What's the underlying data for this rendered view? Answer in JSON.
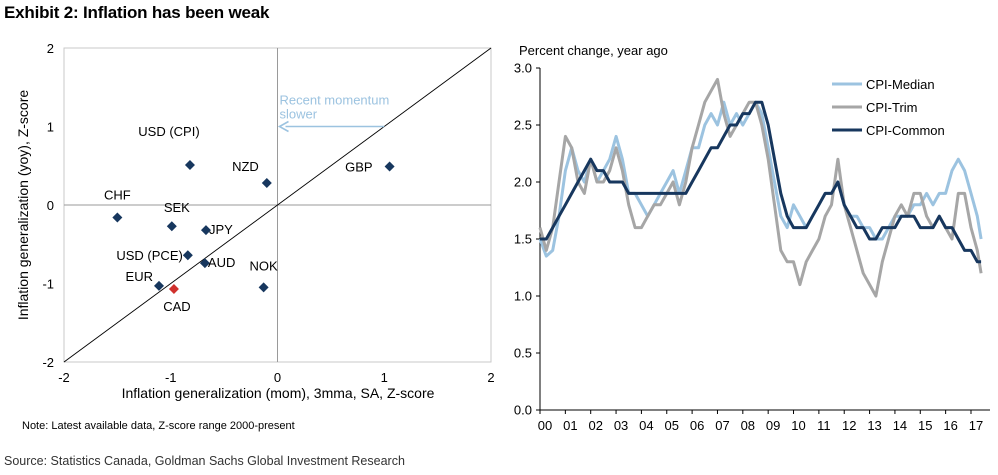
{
  "title": "Exhibit 2: Inflation has been weak",
  "source": "Source: Statistics Canada, Goldman Sachs Global Investment Research",
  "chart_data": [
    {
      "type": "scatter",
      "xlabel": "Inflation generalization (mom), 3mma, SA, Z-score",
      "ylabel": "Inflation generalization (yoy), Z-score",
      "xlim": [
        -2,
        2
      ],
      "ylim": [
        -2,
        2
      ],
      "xticks": [
        "-2",
        "-1",
        "0",
        "1",
        "2"
      ],
      "yticks": [
        "-2",
        "-1",
        "0",
        "1",
        "2"
      ],
      "note": "Note: Latest available data, Z-score  range 2000-present",
      "annotation": {
        "line1": "Recent momentum",
        "line2": "slower",
        "arrow_from": [
          1.0,
          1.0
        ],
        "arrow_to": [
          0.0,
          1.0
        ],
        "color": "#9cc3e0"
      },
      "diagonal": {
        "from": [
          -2,
          -2
        ],
        "to": [
          2,
          2
        ]
      },
      "marker_color": "#17375e",
      "highlight_color": "#d0312d",
      "points": [
        {
          "label": "USD (CPI)",
          "x": -0.82,
          "y": 0.51
        },
        {
          "label": "NZD",
          "x": -0.1,
          "y": 0.28
        },
        {
          "label": "GBP",
          "x": 1.05,
          "y": 0.49
        },
        {
          "label": "CHF",
          "x": -1.5,
          "y": -0.16
        },
        {
          "label": "SEK",
          "x": -0.99,
          "y": -0.27
        },
        {
          "label": "JPY",
          "x": -0.67,
          "y": -0.32
        },
        {
          "label": "USD (PCE)",
          "x": -0.84,
          "y": -0.64
        },
        {
          "label": "AUD",
          "x": -0.68,
          "y": -0.74
        },
        {
          "label": "EUR",
          "x": -1.11,
          "y": -1.03
        },
        {
          "label": "CAD",
          "x": -0.97,
          "y": -1.07,
          "highlight": true
        },
        {
          "label": "NOK",
          "x": -0.13,
          "y": -1.05
        }
      ]
    },
    {
      "type": "line",
      "ylabel": "Percent change, year ago",
      "ylim": [
        0,
        3
      ],
      "yticks": [
        "0.0",
        "0.5",
        "1.0",
        "1.5",
        "2.0",
        "2.5",
        "3.0"
      ],
      "xlim": [
        2000,
        2017.75
      ],
      "xticks": [
        "00",
        "01",
        "02",
        "03",
        "04",
        "05",
        "06",
        "07",
        "08",
        "09",
        "10",
        "11",
        "12",
        "13",
        "14",
        "15",
        "16",
        "17"
      ],
      "series": [
        {
          "name": "CPI-Median",
          "color": "#9cc3e0",
          "x": [
            2000.0,
            2000.25,
            2000.5,
            2000.75,
            2001.0,
            2001.25,
            2001.5,
            2001.75,
            2002.0,
            2002.25,
            2002.5,
            2002.75,
            2003.0,
            2003.25,
            2003.5,
            2003.75,
            2004.0,
            2004.25,
            2004.5,
            2004.75,
            2005.0,
            2005.25,
            2005.5,
            2005.75,
            2006.0,
            2006.25,
            2006.5,
            2006.75,
            2007.0,
            2007.25,
            2007.5,
            2007.75,
            2008.0,
            2008.25,
            2008.5,
            2008.75,
            2009.0,
            2009.25,
            2009.5,
            2009.75,
            2010.0,
            2010.25,
            2010.5,
            2010.75,
            2011.0,
            2011.25,
            2011.5,
            2011.75,
            2012.0,
            2012.25,
            2012.5,
            2012.75,
            2013.0,
            2013.25,
            2013.5,
            2013.75,
            2014.0,
            2014.25,
            2014.5,
            2014.75,
            2015.0,
            2015.25,
            2015.5,
            2015.75,
            2016.0,
            2016.25,
            2016.5,
            2016.75,
            2017.0,
            2017.25,
            2017.4
          ],
          "values": [
            1.5,
            1.35,
            1.4,
            1.7,
            2.1,
            2.3,
            2.1,
            2.0,
            2.2,
            2.0,
            2.1,
            2.2,
            2.4,
            2.2,
            1.9,
            1.9,
            1.8,
            1.7,
            1.8,
            1.9,
            2.0,
            2.1,
            1.9,
            2.1,
            2.3,
            2.3,
            2.5,
            2.6,
            2.5,
            2.7,
            2.5,
            2.6,
            2.5,
            2.6,
            2.7,
            2.6,
            2.3,
            2.0,
            1.7,
            1.6,
            1.8,
            1.7,
            1.6,
            1.7,
            1.8,
            1.9,
            1.9,
            2.0,
            1.8,
            1.7,
            1.7,
            1.6,
            1.6,
            1.5,
            1.5,
            1.6,
            1.7,
            1.7,
            1.7,
            1.8,
            1.8,
            1.9,
            1.8,
            1.9,
            1.9,
            2.1,
            2.2,
            2.1,
            1.9,
            1.7,
            1.5
          ]
        },
        {
          "name": "CPI-Trim",
          "color": "#a6a6a6",
          "x": [
            2000.0,
            2000.25,
            2000.5,
            2000.75,
            2001.0,
            2001.25,
            2001.5,
            2001.75,
            2002.0,
            2002.25,
            2002.5,
            2002.75,
            2003.0,
            2003.25,
            2003.5,
            2003.75,
            2004.0,
            2004.25,
            2004.5,
            2004.75,
            2005.0,
            2005.25,
            2005.5,
            2005.75,
            2006.0,
            2006.25,
            2006.5,
            2006.75,
            2007.0,
            2007.25,
            2007.5,
            2007.75,
            2008.0,
            2008.25,
            2008.5,
            2008.75,
            2009.0,
            2009.25,
            2009.5,
            2009.75,
            2010.0,
            2010.25,
            2010.5,
            2010.75,
            2011.0,
            2011.25,
            2011.5,
            2011.75,
            2012.0,
            2012.25,
            2012.5,
            2012.75,
            2013.0,
            2013.25,
            2013.5,
            2013.75,
            2014.0,
            2014.25,
            2014.5,
            2014.75,
            2015.0,
            2015.25,
            2015.5,
            2015.75,
            2016.0,
            2016.25,
            2016.5,
            2016.75,
            2017.0,
            2017.25,
            2017.4
          ],
          "values": [
            1.6,
            1.4,
            1.6,
            2.0,
            2.4,
            2.3,
            2.0,
            1.9,
            2.2,
            2.0,
            2.0,
            2.1,
            2.3,
            2.1,
            1.8,
            1.6,
            1.6,
            1.7,
            1.8,
            1.8,
            1.9,
            2.0,
            1.8,
            2.0,
            2.3,
            2.5,
            2.7,
            2.8,
            2.9,
            2.6,
            2.4,
            2.5,
            2.6,
            2.7,
            2.7,
            2.5,
            2.2,
            1.8,
            1.4,
            1.3,
            1.3,
            1.1,
            1.3,
            1.4,
            1.5,
            1.7,
            1.8,
            2.2,
            1.8,
            1.6,
            1.4,
            1.2,
            1.1,
            1.0,
            1.3,
            1.5,
            1.7,
            1.8,
            1.7,
            1.9,
            1.9,
            1.7,
            1.6,
            1.7,
            1.6,
            1.5,
            1.9,
            1.9,
            1.6,
            1.4,
            1.2
          ]
        },
        {
          "name": "CPI-Common",
          "color": "#17375e",
          "x": [
            2000.0,
            2000.25,
            2000.5,
            2000.75,
            2001.0,
            2001.25,
            2001.5,
            2001.75,
            2002.0,
            2002.25,
            2002.5,
            2002.75,
            2003.0,
            2003.25,
            2003.5,
            2003.75,
            2004.0,
            2004.25,
            2004.5,
            2004.75,
            2005.0,
            2005.25,
            2005.5,
            2005.75,
            2006.0,
            2006.25,
            2006.5,
            2006.75,
            2007.0,
            2007.25,
            2007.5,
            2007.75,
            2008.0,
            2008.25,
            2008.5,
            2008.75,
            2009.0,
            2009.25,
            2009.5,
            2009.75,
            2010.0,
            2010.25,
            2010.5,
            2010.75,
            2011.0,
            2011.25,
            2011.5,
            2011.75,
            2012.0,
            2012.25,
            2012.5,
            2012.75,
            2013.0,
            2013.25,
            2013.5,
            2013.75,
            2014.0,
            2014.25,
            2014.5,
            2014.75,
            2015.0,
            2015.25,
            2015.5,
            2015.75,
            2016.0,
            2016.25,
            2016.5,
            2016.75,
            2017.0,
            2017.25,
            2017.4
          ],
          "values": [
            1.5,
            1.5,
            1.6,
            1.7,
            1.8,
            1.9,
            2.0,
            2.1,
            2.2,
            2.1,
            2.1,
            2.0,
            2.0,
            2.0,
            1.9,
            1.9,
            1.9,
            1.9,
            1.9,
            1.9,
            1.9,
            1.9,
            1.9,
            1.9,
            2.0,
            2.1,
            2.2,
            2.3,
            2.3,
            2.4,
            2.5,
            2.5,
            2.6,
            2.6,
            2.7,
            2.7,
            2.5,
            2.2,
            1.9,
            1.7,
            1.6,
            1.6,
            1.6,
            1.7,
            1.8,
            1.9,
            1.9,
            2.0,
            1.8,
            1.7,
            1.6,
            1.6,
            1.5,
            1.5,
            1.6,
            1.6,
            1.6,
            1.7,
            1.7,
            1.7,
            1.6,
            1.6,
            1.6,
            1.7,
            1.6,
            1.6,
            1.5,
            1.4,
            1.4,
            1.3,
            1.3
          ]
        }
      ]
    }
  ]
}
